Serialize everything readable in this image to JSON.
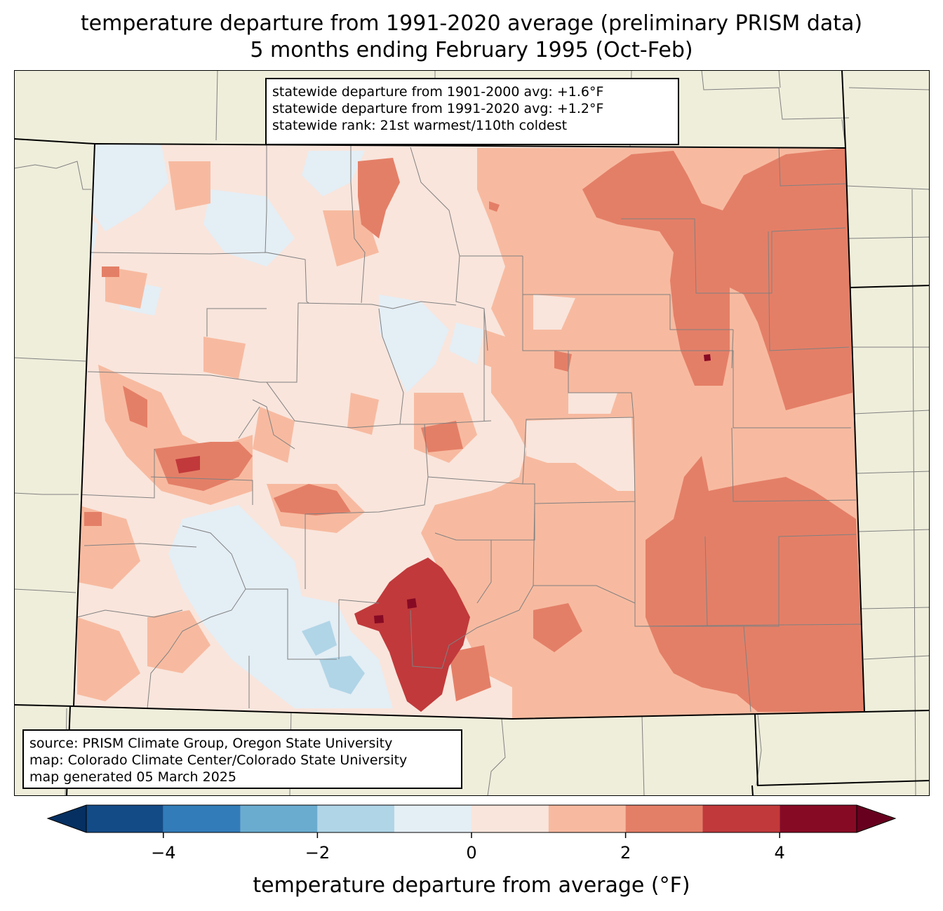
{
  "title": {
    "line1": "temperature departure from 1991-2020 average (preliminary PRISM data)",
    "line2": "5 months ending February 1995 (Oct-Feb)"
  },
  "stats": {
    "line1": "statewide departure from 1901-2000 avg: +1.6°F",
    "line2": "statewide departure from 1991-2020 avg: +1.2°F",
    "line3": "statewide rank: 21st warmest/110th coldest"
  },
  "source": {
    "line1": "source: PRISM Climate Group, Oregon State University",
    "line2": "map: Colorado Climate Center/Colorado State University",
    "line3": "map generated 05 March 2025"
  },
  "colorbar": {
    "label": "temperature departure from average (°F)",
    "min": -5,
    "max": 5,
    "bin_edges": [
      -5,
      -4,
      -3,
      -2,
      -1,
      0,
      1,
      2,
      3,
      4,
      5
    ],
    "bin_colors": [
      "#134b87",
      "#327cb9",
      "#6aacd0",
      "#b0d5e7",
      "#e4eef5",
      "#f9e5dc",
      "#f7baa0",
      "#e47f67",
      "#c1393b",
      "#870a24"
    ],
    "under_color": "#053061",
    "over_color": "#67001f",
    "ticks": [
      {
        "value": -4,
        "label": "−4"
      },
      {
        "value": -2,
        "label": "−2"
      },
      {
        "value": 0,
        "label": "0"
      },
      {
        "value": 2,
        "label": "2"
      },
      {
        "value": 4,
        "label": "4"
      }
    ]
  },
  "map_colors": {
    "land": "#efeedb",
    "state_border": "#000000",
    "county_border": "#808080",
    "base": "#f9e5dc",
    "light": "#f7baa0",
    "mid": "#e47f67",
    "dark": "#c1393b",
    "darkest": "#870a24",
    "cool": "#e4eef5",
    "cool2": "#b0d5e7"
  }
}
